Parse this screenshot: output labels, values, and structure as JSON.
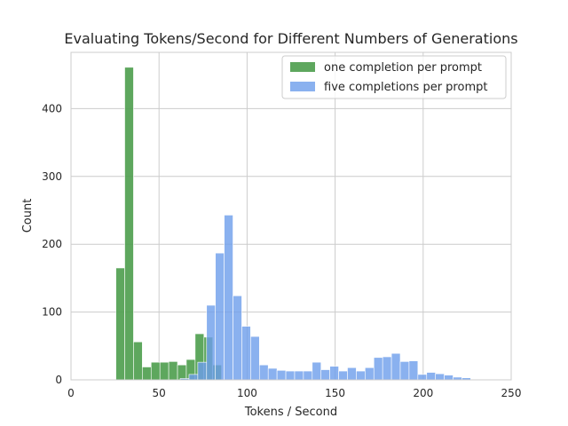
{
  "chart_data": {
    "type": "histogram",
    "title": "Evaluating Tokens/Second for Different Numbers of Generations",
    "xlabel": "Tokens / Second",
    "ylabel": "Count",
    "xlim": [
      0,
      250
    ],
    "ylim": [
      0,
      483
    ],
    "xticks": [
      0,
      50,
      100,
      150,
      200,
      250
    ],
    "yticks": [
      0,
      100,
      200,
      300,
      400
    ],
    "grid": true,
    "legend_position": "top-right",
    "series": [
      {
        "name": "one completion per prompt",
        "color": "#4c9d4c",
        "opacity": 0.9,
        "bins": [
          {
            "x0": 25.5,
            "x1": 30.5,
            "count": 165
          },
          {
            "x0": 30.5,
            "x1": 35.5,
            "count": 461
          },
          {
            "x0": 35.5,
            "x1": 40.5,
            "count": 56
          },
          {
            "x0": 40.5,
            "x1": 45.5,
            "count": 19
          },
          {
            "x0": 45.5,
            "x1": 50.5,
            "count": 26
          },
          {
            "x0": 50.5,
            "x1": 55.5,
            "count": 26
          },
          {
            "x0": 55.5,
            "x1": 60.5,
            "count": 27
          },
          {
            "x0": 60.5,
            "x1": 65.5,
            "count": 22
          },
          {
            "x0": 65.5,
            "x1": 70.5,
            "count": 30
          },
          {
            "x0": 70.5,
            "x1": 75.5,
            "count": 68
          },
          {
            "x0": 75.5,
            "x1": 80.5,
            "count": 63
          },
          {
            "x0": 80.5,
            "x1": 85.5,
            "count": 22
          }
        ]
      },
      {
        "name": "five completions per prompt",
        "color": "#6d9eeb",
        "opacity": 0.8,
        "bins": [
          {
            "x0": 62,
            "x1": 67,
            "count": 2
          },
          {
            "x0": 67,
            "x1": 72,
            "count": 8
          },
          {
            "x0": 72,
            "x1": 77,
            "count": 26
          },
          {
            "x0": 77,
            "x1": 82,
            "count": 110
          },
          {
            "x0": 82,
            "x1": 87,
            "count": 187
          },
          {
            "x0": 87,
            "x1": 92,
            "count": 243
          },
          {
            "x0": 92,
            "x1": 97,
            "count": 124
          },
          {
            "x0": 97,
            "x1": 102,
            "count": 79
          },
          {
            "x0": 102,
            "x1": 107,
            "count": 64
          },
          {
            "x0": 107,
            "x1": 112,
            "count": 22
          },
          {
            "x0": 112,
            "x1": 117,
            "count": 17
          },
          {
            "x0": 117,
            "x1": 122,
            "count": 14
          },
          {
            "x0": 122,
            "x1": 127,
            "count": 13
          },
          {
            "x0": 127,
            "x1": 132,
            "count": 13
          },
          {
            "x0": 132,
            "x1": 137,
            "count": 13
          },
          {
            "x0": 137,
            "x1": 142,
            "count": 26
          },
          {
            "x0": 142,
            "x1": 147,
            "count": 15
          },
          {
            "x0": 147,
            "x1": 152,
            "count": 20
          },
          {
            "x0": 152,
            "x1": 157,
            "count": 13
          },
          {
            "x0": 157,
            "x1": 162,
            "count": 18
          },
          {
            "x0": 162,
            "x1": 167,
            "count": 13
          },
          {
            "x0": 167,
            "x1": 172,
            "count": 18
          },
          {
            "x0": 172,
            "x1": 177,
            "count": 33
          },
          {
            "x0": 177,
            "x1": 182,
            "count": 34
          },
          {
            "x0": 182,
            "x1": 187,
            "count": 39
          },
          {
            "x0": 187,
            "x1": 192,
            "count": 27
          },
          {
            "x0": 192,
            "x1": 197,
            "count": 28
          },
          {
            "x0": 197,
            "x1": 202,
            "count": 8
          },
          {
            "x0": 202,
            "x1": 207,
            "count": 11
          },
          {
            "x0": 207,
            "x1": 212,
            "count": 9
          },
          {
            "x0": 212,
            "x1": 217,
            "count": 7
          },
          {
            "x0": 217,
            "x1": 222,
            "count": 4
          },
          {
            "x0": 222,
            "x1": 227,
            "count": 3
          },
          {
            "x0": 227,
            "x1": 232,
            "count": 1
          }
        ]
      }
    ]
  }
}
